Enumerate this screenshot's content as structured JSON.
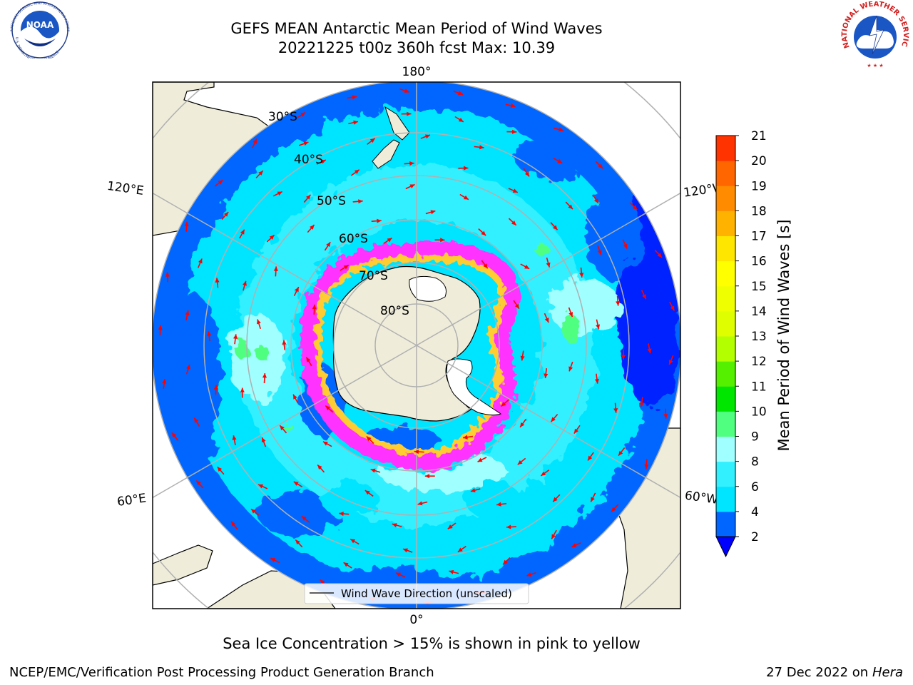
{
  "header": {
    "title_line1": "GEFS MEAN Antarctic Mean Period of Wind Waves",
    "title_line2": "20221225 t00z 360h fcst   Max: 10.39"
  },
  "logos": {
    "left": {
      "name": "noaa-logo",
      "ring_text_top": "NATIONAL OCEANIC AND ATMOSPHERIC ADMINISTRATION",
      "ring_text_bottom": "U.S. DEPARTMENT OF COMMERCE",
      "center_text": "NOAA"
    },
    "right": {
      "name": "nws-logo",
      "ring_text_top": "NATIONAL WEATHER SERVICE"
    }
  },
  "map": {
    "projection": "south polar stereographic",
    "longitude_labels": {
      "top": "180°",
      "bottom": "0°",
      "upper_left": "120°E",
      "upper_right": "120°W",
      "lower_left": "60°E",
      "lower_right": "60°W"
    },
    "latitude_labels": [
      "30°S",
      "40°S",
      "50°S",
      "60°S",
      "70°S",
      "80°S"
    ],
    "legend_label": "Wind Wave Direction (unscaled)",
    "arrow_color": "#ff0000",
    "land_color": "#efedda",
    "sea_ice_colors": [
      "#ff33ff",
      "#ffcc33",
      "#ffffff"
    ],
    "grid_color": "#b0b0b0"
  },
  "colorbar": {
    "label": "Mean Period of Wind Waves [s]",
    "ticks": [
      "2",
      "4",
      "6",
      "8",
      "9",
      "10",
      "11",
      "12",
      "13",
      "14",
      "15",
      "16",
      "17",
      "18",
      "19",
      "20",
      "21"
    ],
    "colors": [
      "#0066ff",
      "#00e5ff",
      "#33f0ff",
      "#a0ffff",
      "#50ff80",
      "#00e600",
      "#55f000",
      "#b3ff00",
      "#dfff00",
      "#f0ff00",
      "#ffff00",
      "#ffe600",
      "#ffb300",
      "#ff8c00",
      "#ff6600",
      "#ff3300",
      "#ff0000"
    ],
    "under_color": "#0000ff"
  },
  "footer": {
    "note": "Sea Ice Concentration > 15% is shown in pink to yellow",
    "credit": "NCEP/EMC/Verification Post Processing Product Generation Branch",
    "date": "27 Dec 2022 on",
    "machine": "Hera"
  }
}
